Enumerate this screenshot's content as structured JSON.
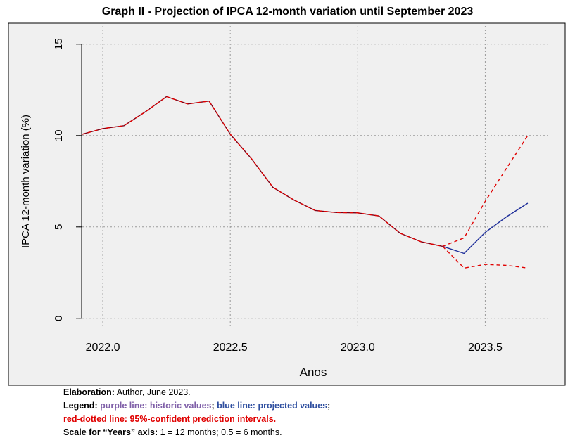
{
  "chart_data": {
    "type": "line",
    "title": "Graph II - Projection of IPCA 12-month variation until September 2023",
    "xlabel": "Anos",
    "ylabel": "IPCA 12-month variation (%)",
    "xlim": [
      1.9917,
      2023.75
    ],
    "ylim": [
      -0.2,
      15.3
    ],
    "x_ticks": [
      2022.0,
      2022.5,
      2023.0,
      2023.5
    ],
    "x_tick_labels": [
      "2022.0",
      "2022.5",
      "2023.0",
      "2023.5"
    ],
    "y_ticks": [
      0,
      5,
      10,
      15
    ],
    "y_tick_labels": [
      "0",
      "5",
      "10",
      "15"
    ],
    "grid": true,
    "series": [
      {
        "role": "historic",
        "color": "#7b0016",
        "style": "solid",
        "x": [
          2021.917,
          2022.0,
          2022.083,
          2022.167,
          2022.25,
          2022.333,
          2022.417,
          2022.5,
          2022.583,
          2022.667,
          2022.75,
          2022.833,
          2022.917,
          2023.0,
          2023.083,
          2023.167,
          2023.25,
          2023.333
        ],
        "y": [
          10.06,
          10.38,
          10.54,
          11.3,
          12.13,
          11.73,
          11.89,
          10.07,
          8.73,
          7.17,
          6.47,
          5.9,
          5.79,
          5.77,
          5.6,
          4.65,
          4.18,
          3.94
        ]
      },
      {
        "role": "projected",
        "color": "#1f2f9a",
        "style": "solid",
        "x": [
          2023.333,
          2023.417,
          2023.5,
          2023.583,
          2023.667
        ],
        "y": [
          3.94,
          3.55,
          4.7,
          5.55,
          6.3
        ]
      },
      {
        "role": "interval_upper",
        "color": "#e00000",
        "style": "dashed",
        "x": [
          2021.917,
          2022.0,
          2022.083,
          2022.167,
          2022.25,
          2022.333,
          2022.417,
          2022.5,
          2022.583,
          2022.667,
          2022.75,
          2022.833,
          2022.917,
          2023.0,
          2023.083,
          2023.167,
          2023.25,
          2023.333,
          2023.417,
          2023.5,
          2023.583,
          2023.667
        ],
        "y": [
          10.06,
          10.38,
          10.54,
          11.3,
          12.13,
          11.73,
          11.89,
          10.07,
          8.73,
          7.17,
          6.47,
          5.9,
          5.79,
          5.77,
          5.6,
          4.65,
          4.18,
          3.94,
          4.4,
          6.4,
          8.2,
          10.0
        ]
      },
      {
        "role": "interval_lower",
        "color": "#e00000",
        "style": "dashed",
        "x": [
          2023.333,
          2023.417,
          2023.5,
          2023.583,
          2023.667
        ],
        "y": [
          3.94,
          2.75,
          2.95,
          2.9,
          2.75
        ]
      }
    ]
  },
  "notes": {
    "elaboration_label": "Elaboration:",
    "elaboration_text": " Author, June 2023.",
    "legend_label": "Legend: ",
    "legend_purple": "purple line: historic values",
    "legend_sep": "; ",
    "legend_blue": "blue line: projected values",
    "legend_end": ";",
    "legend_red": "red-dotted line: 95%-confident prediction intervals.",
    "scale_label": "Scale for “Years” axis:",
    "scale_text": " 1 = 12 months; 0.5 = 6 months."
  },
  "colors": {
    "plot_background": "#f0f0f0",
    "grid": "#9a9a9a",
    "historic": "#7b0016",
    "projected": "#1f2f9a",
    "interval": "#e00000"
  }
}
